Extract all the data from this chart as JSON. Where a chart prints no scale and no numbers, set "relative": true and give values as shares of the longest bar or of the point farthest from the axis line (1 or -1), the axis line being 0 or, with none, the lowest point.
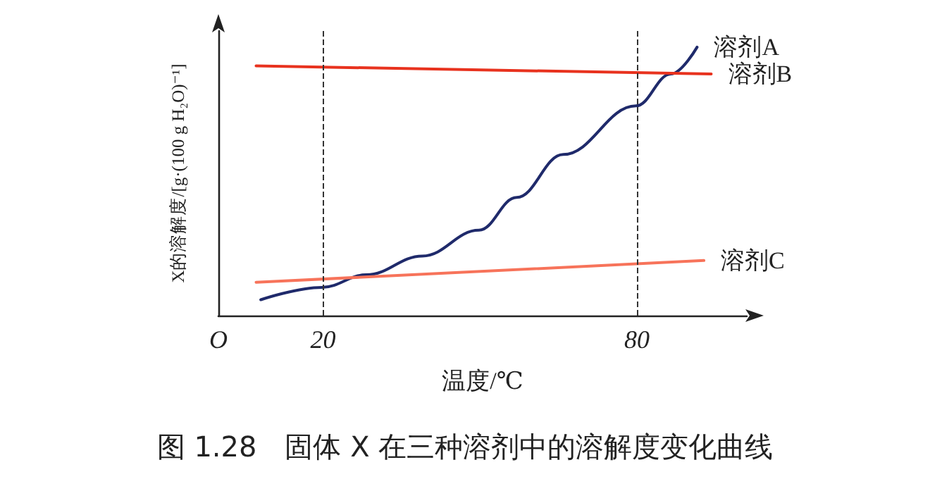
{
  "chart_data": {
    "type": "line",
    "title": "图 1.28　固体 X 在三种溶剂中的溶解度变化曲线",
    "xlabel": "温度/℃",
    "ylabel": "X的溶解度/[g·(100 g H₂O)⁻¹]",
    "relative": true,
    "xlim": [
      0,
      101
    ],
    "xticks": [
      {
        "value": 0,
        "label": "O"
      },
      20,
      80
    ],
    "grid": false,
    "legend": false,
    "marker": "none",
    "line_style": "solid",
    "ref_lines": [
      {
        "axis": "x",
        "value": 20,
        "color": "#333333",
        "line_style": "dashed"
      },
      {
        "axis": "x",
        "value": 80,
        "color": "#333333",
        "line_style": "dashed"
      }
    ],
    "series": [
      {
        "name": "溶剂A",
        "color": "#1f2a6b",
        "x": [
          8.1,
          19.8,
          28.3,
          39,
          49.8,
          57,
          65.9,
          79.8,
          86.5,
          91.5
        ],
        "values": [
          0.059,
          0.105,
          0.152,
          0.222,
          0.318,
          0.44,
          0.6,
          0.781,
          0.9,
          1.0
        ]
      },
      {
        "name": "溶剂B",
        "color": "#e8321e",
        "x": [
          7.2,
          94.2
        ],
        "values": [
          0.93,
          0.9
        ]
      },
      {
        "name": "溶剂C",
        "color": "#f7735a",
        "x": [
          7.2,
          92.8
        ],
        "values": [
          0.124,
          0.205
        ]
      }
    ]
  }
}
